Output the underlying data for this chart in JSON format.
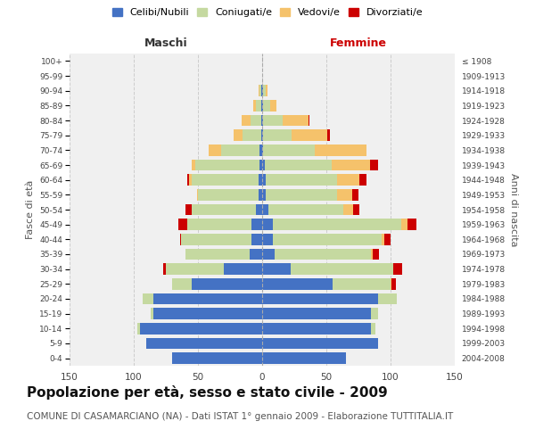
{
  "age_groups": [
    "0-4",
    "5-9",
    "10-14",
    "15-19",
    "20-24",
    "25-29",
    "30-34",
    "35-39",
    "40-44",
    "45-49",
    "50-54",
    "55-59",
    "60-64",
    "65-69",
    "70-74",
    "75-79",
    "80-84",
    "85-89",
    "90-94",
    "95-99",
    "100+"
  ],
  "birth_years": [
    "2004-2008",
    "1999-2003",
    "1994-1998",
    "1989-1993",
    "1984-1988",
    "1979-1983",
    "1974-1978",
    "1969-1973",
    "1964-1968",
    "1959-1963",
    "1954-1958",
    "1949-1953",
    "1944-1948",
    "1939-1943",
    "1934-1938",
    "1929-1933",
    "1924-1928",
    "1919-1923",
    "1914-1918",
    "1909-1913",
    "≤ 1908"
  ],
  "colors": {
    "celibi": "#4472c4",
    "coniugati": "#c5d9a0",
    "vedovi": "#f5c26b",
    "divorziati": "#cc0000"
  },
  "maschi": {
    "celibi": [
      70,
      90,
      95,
      85,
      85,
      55,
      30,
      10,
      8,
      8,
      5,
      3,
      3,
      2,
      2,
      1,
      1,
      1,
      1,
      0,
      0
    ],
    "coniugati": [
      0,
      0,
      2,
      2,
      8,
      15,
      45,
      50,
      55,
      50,
      50,
      47,
      52,
      50,
      30,
      14,
      8,
      4,
      1,
      0,
      0
    ],
    "vedovi": [
      0,
      0,
      0,
      0,
      0,
      0,
      0,
      0,
      0,
      0,
      0,
      1,
      2,
      3,
      10,
      7,
      7,
      2,
      1,
      0,
      0
    ],
    "divorziati": [
      0,
      0,
      0,
      0,
      0,
      0,
      2,
      0,
      1,
      7,
      5,
      0,
      1,
      0,
      0,
      0,
      0,
      0,
      0,
      0,
      0
    ]
  },
  "femmine": {
    "celibi": [
      65,
      90,
      85,
      85,
      90,
      55,
      22,
      10,
      8,
      8,
      5,
      3,
      3,
      2,
      1,
      1,
      1,
      1,
      1,
      0,
      0
    ],
    "coniugati": [
      0,
      0,
      3,
      5,
      15,
      45,
      80,
      75,
      85,
      100,
      58,
      55,
      55,
      52,
      40,
      22,
      15,
      5,
      2,
      0,
      0
    ],
    "vedovi": [
      0,
      0,
      0,
      0,
      0,
      1,
      0,
      1,
      2,
      5,
      8,
      12,
      18,
      30,
      40,
      28,
      20,
      5,
      1,
      0,
      0
    ],
    "divorziati": [
      0,
      0,
      0,
      0,
      0,
      3,
      7,
      5,
      5,
      7,
      5,
      5,
      5,
      6,
      0,
      2,
      1,
      0,
      0,
      0,
      0
    ]
  },
  "xlim": 150,
  "title": "Popolazione per età, sesso e stato civile - 2009",
  "subtitle": "COMUNE DI CASAMARCIANO (NA) - Dati ISTAT 1° gennaio 2009 - Elaborazione TUTTITALIA.IT",
  "ylabel_left": "Fasce di età",
  "ylabel_right": "Anni di nascita",
  "label_maschi": "Maschi",
  "label_femmine": "Femmine",
  "legend_labels": [
    "Celibi/Nubili",
    "Coniugati/e",
    "Vedovi/e",
    "Divorziati/e"
  ],
  "bg_color": "#f0f0f0",
  "grid_color": "#cccccc",
  "title_fontsize": 11,
  "subtitle_fontsize": 7.5
}
